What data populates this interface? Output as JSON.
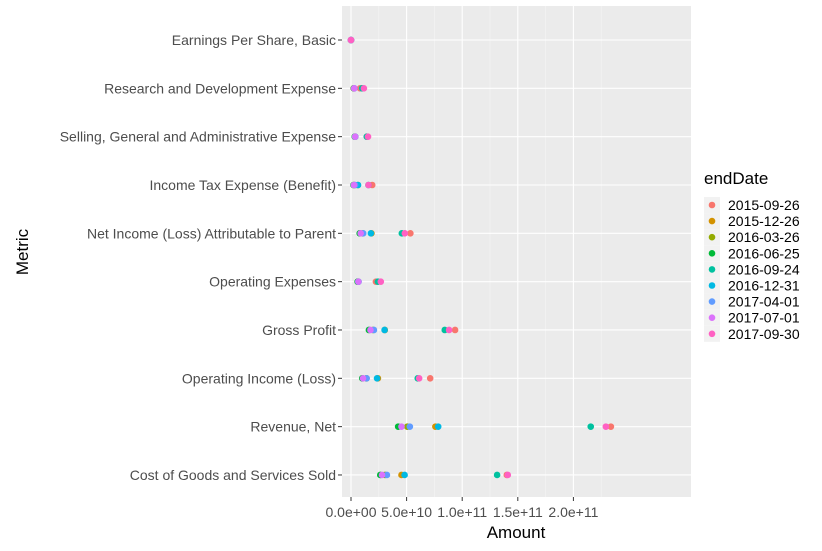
{
  "chart_data": {
    "type": "scatter",
    "title": "",
    "xlabel": "Amount",
    "ylabel": "Metric",
    "xlim": [
      -5000000000,
      240000000000
    ],
    "x_ticks": [
      0,
      50000000000,
      100000000000,
      150000000000,
      200000000000
    ],
    "x_tick_labels": [
      "0.0e+00",
      "5.0e+10",
      "1.0e+11",
      "1.5e+11",
      "2.0e+11"
    ],
    "grid": true,
    "legend_position": "right",
    "legend_title": "endDate",
    "categories": [
      "Earnings Per Share, Basic",
      "Research and Development Expense",
      "Selling, General and Administrative Expense",
      "Income Tax Expense (Benefit)",
      "Net Income (Loss) Attributable to Parent",
      "Operating Expenses",
      "Gross Profit",
      "Operating Income (Loss)",
      "Revenue, Net",
      "Cost of Goods and Services Sold"
    ],
    "series": [
      {
        "name": "2015-09-26",
        "color": "#F8766D",
        "points": [
          {
            "metric": "Earnings Per Share, Basic",
            "x": 9
          },
          {
            "metric": "Research and Development Expense",
            "x": 8100000000
          },
          {
            "metric": "Selling, General and Administrative Expense",
            "x": 14300000000
          },
          {
            "metric": "Income Tax Expense (Benefit)",
            "x": 19100000000
          },
          {
            "metric": "Net Income (Loss) Attributable to Parent",
            "x": 53400000000
          },
          {
            "metric": "Operating Expenses",
            "x": 22400000000
          },
          {
            "metric": "Gross Profit",
            "x": 93600000000
          },
          {
            "metric": "Operating Income (Loss)",
            "x": 71200000000
          },
          {
            "metric": "Revenue, Net",
            "x": 233700000000
          },
          {
            "metric": "Cost of Goods and Services Sold",
            "x": 140100000000
          }
        ]
      },
      {
        "name": "2015-12-26",
        "color": "#D39200",
        "points": [
          {
            "metric": "Earnings Per Share, Basic",
            "x": 3.3
          },
          {
            "metric": "Research and Development Expense",
            "x": 2400000000
          },
          {
            "metric": "Selling, General and Administrative Expense",
            "x": 3800000000
          },
          {
            "metric": "Income Tax Expense (Benefit)",
            "x": 6200000000
          },
          {
            "metric": "Net Income (Loss) Attributable to Parent",
            "x": 18400000000
          },
          {
            "metric": "Operating Expenses",
            "x": 6300000000
          },
          {
            "metric": "Gross Profit",
            "x": 30400000000
          },
          {
            "metric": "Operating Income (Loss)",
            "x": 24200000000
          },
          {
            "metric": "Revenue, Net",
            "x": 75900000000
          },
          {
            "metric": "Cost of Goods and Services Sold",
            "x": 45400000000
          }
        ]
      },
      {
        "name": "2016-03-26",
        "color": "#93AA00",
        "points": [
          {
            "metric": "Earnings Per Share, Basic",
            "x": 1.91
          },
          {
            "metric": "Research and Development Expense",
            "x": 2500000000
          },
          {
            "metric": "Selling, General and Administrative Expense",
            "x": 3400000000
          },
          {
            "metric": "Income Tax Expense (Benefit)",
            "x": 3100000000
          },
          {
            "metric": "Net Income (Loss) Attributable to Parent",
            "x": 10500000000
          },
          {
            "metric": "Operating Expenses",
            "x": 6000000000
          },
          {
            "metric": "Gross Profit",
            "x": 19900000000
          },
          {
            "metric": "Operating Income (Loss)",
            "x": 13900000000
          },
          {
            "metric": "Revenue, Net",
            "x": 50600000000
          },
          {
            "metric": "Cost of Goods and Services Sold",
            "x": 30600000000
          }
        ]
      },
      {
        "name": "2016-06-25",
        "color": "#00BA38",
        "points": [
          {
            "metric": "Earnings Per Share, Basic",
            "x": 1.43
          },
          {
            "metric": "Research and Development Expense",
            "x": 2600000000
          },
          {
            "metric": "Selling, General and Administrative Expense",
            "x": 3400000000
          },
          {
            "metric": "Income Tax Expense (Benefit)",
            "x": 2200000000
          },
          {
            "metric": "Net Income (Loss) Attributable to Parent",
            "x": 7800000000
          },
          {
            "metric": "Operating Expenses",
            "x": 6000000000
          },
          {
            "metric": "Gross Profit",
            "x": 16100000000
          },
          {
            "metric": "Operating Income (Loss)",
            "x": 10100000000
          },
          {
            "metric": "Revenue, Net",
            "x": 42400000000
          },
          {
            "metric": "Cost of Goods and Services Sold",
            "x": 26300000000
          }
        ]
      },
      {
        "name": "2016-09-24",
        "color": "#00C19F",
        "points": [
          {
            "metric": "Earnings Per Share, Basic",
            "x": 8.35
          },
          {
            "metric": "Research and Development Expense",
            "x": 10000000000
          },
          {
            "metric": "Selling, General and Administrative Expense",
            "x": 14200000000
          },
          {
            "metric": "Income Tax Expense (Benefit)",
            "x": 15700000000
          },
          {
            "metric": "Net Income (Loss) Attributable to Parent",
            "x": 45700000000
          },
          {
            "metric": "Operating Expenses",
            "x": 24200000000
          },
          {
            "metric": "Gross Profit",
            "x": 84300000000
          },
          {
            "metric": "Operating Income (Loss)",
            "x": 60000000000
          },
          {
            "metric": "Revenue, Net",
            "x": 215600000000
          },
          {
            "metric": "Cost of Goods and Services Sold",
            "x": 131400000000
          }
        ]
      },
      {
        "name": "2016-12-31",
        "color": "#00B9E3",
        "points": [
          {
            "metric": "Earnings Per Share, Basic",
            "x": 3.38
          },
          {
            "metric": "Research and Development Expense",
            "x": 2900000000
          },
          {
            "metric": "Selling, General and Administrative Expense",
            "x": 3900000000
          },
          {
            "metric": "Income Tax Expense (Benefit)",
            "x": 6300000000
          },
          {
            "metric": "Net Income (Loss) Attributable to Parent",
            "x": 17900000000
          },
          {
            "metric": "Operating Expenses",
            "x": 6800000000
          },
          {
            "metric": "Gross Profit",
            "x": 30200000000
          },
          {
            "metric": "Operating Income (Loss)",
            "x": 23400000000
          },
          {
            "metric": "Revenue, Net",
            "x": 78400000000
          },
          {
            "metric": "Cost of Goods and Services Sold",
            "x": 48200000000
          }
        ]
      },
      {
        "name": "2017-04-01",
        "color": "#619CFF",
        "points": [
          {
            "metric": "Earnings Per Share, Basic",
            "x": 2.11
          },
          {
            "metric": "Research and Development Expense",
            "x": 2800000000
          },
          {
            "metric": "Selling, General and Administrative Expense",
            "x": 3700000000
          },
          {
            "metric": "Income Tax Expense (Benefit)",
            "x": 3700000000
          },
          {
            "metric": "Net Income (Loss) Attributable to Parent",
            "x": 11000000000
          },
          {
            "metric": "Operating Expenses",
            "x": 6500000000
          },
          {
            "metric": "Gross Profit",
            "x": 20600000000
          },
          {
            "metric": "Operating Income (Loss)",
            "x": 14100000000
          },
          {
            "metric": "Revenue, Net",
            "x": 52900000000
          },
          {
            "metric": "Cost of Goods and Services Sold",
            "x": 32300000000
          }
        ]
      },
      {
        "name": "2017-07-01",
        "color": "#DB72FB",
        "points": [
          {
            "metric": "Earnings Per Share, Basic",
            "x": 1.68
          },
          {
            "metric": "Research and Development Expense",
            "x": 2900000000
          },
          {
            "metric": "Selling, General and Administrative Expense",
            "x": 3800000000
          },
          {
            "metric": "Income Tax Expense (Benefit)",
            "x": 2600000000
          },
          {
            "metric": "Net Income (Loss) Attributable to Parent",
            "x": 8700000000
          },
          {
            "metric": "Operating Expenses",
            "x": 6700000000
          },
          {
            "metric": "Gross Profit",
            "x": 17500000000
          },
          {
            "metric": "Operating Income (Loss)",
            "x": 10800000000
          },
          {
            "metric": "Revenue, Net",
            "x": 45400000000
          },
          {
            "metric": "Cost of Goods and Services Sold",
            "x": 27900000000
          }
        ]
      },
      {
        "name": "2017-09-30",
        "color": "#FF61C3",
        "points": [
          {
            "metric": "Earnings Per Share, Basic",
            "x": 9.27
          },
          {
            "metric": "Research and Development Expense",
            "x": 11600000000
          },
          {
            "metric": "Selling, General and Administrative Expense",
            "x": 15300000000
          },
          {
            "metric": "Income Tax Expense (Benefit)",
            "x": 15700000000
          },
          {
            "metric": "Net Income (Loss) Attributable to Parent",
            "x": 48400000000
          },
          {
            "metric": "Operating Expenses",
            "x": 26800000000
          },
          {
            "metric": "Gross Profit",
            "x": 88200000000
          },
          {
            "metric": "Operating Income (Loss)",
            "x": 61300000000
          },
          {
            "metric": "Revenue, Net",
            "x": 229200000000
          },
          {
            "metric": "Cost of Goods and Services Sold",
            "x": 141000000000
          }
        ]
      }
    ]
  }
}
